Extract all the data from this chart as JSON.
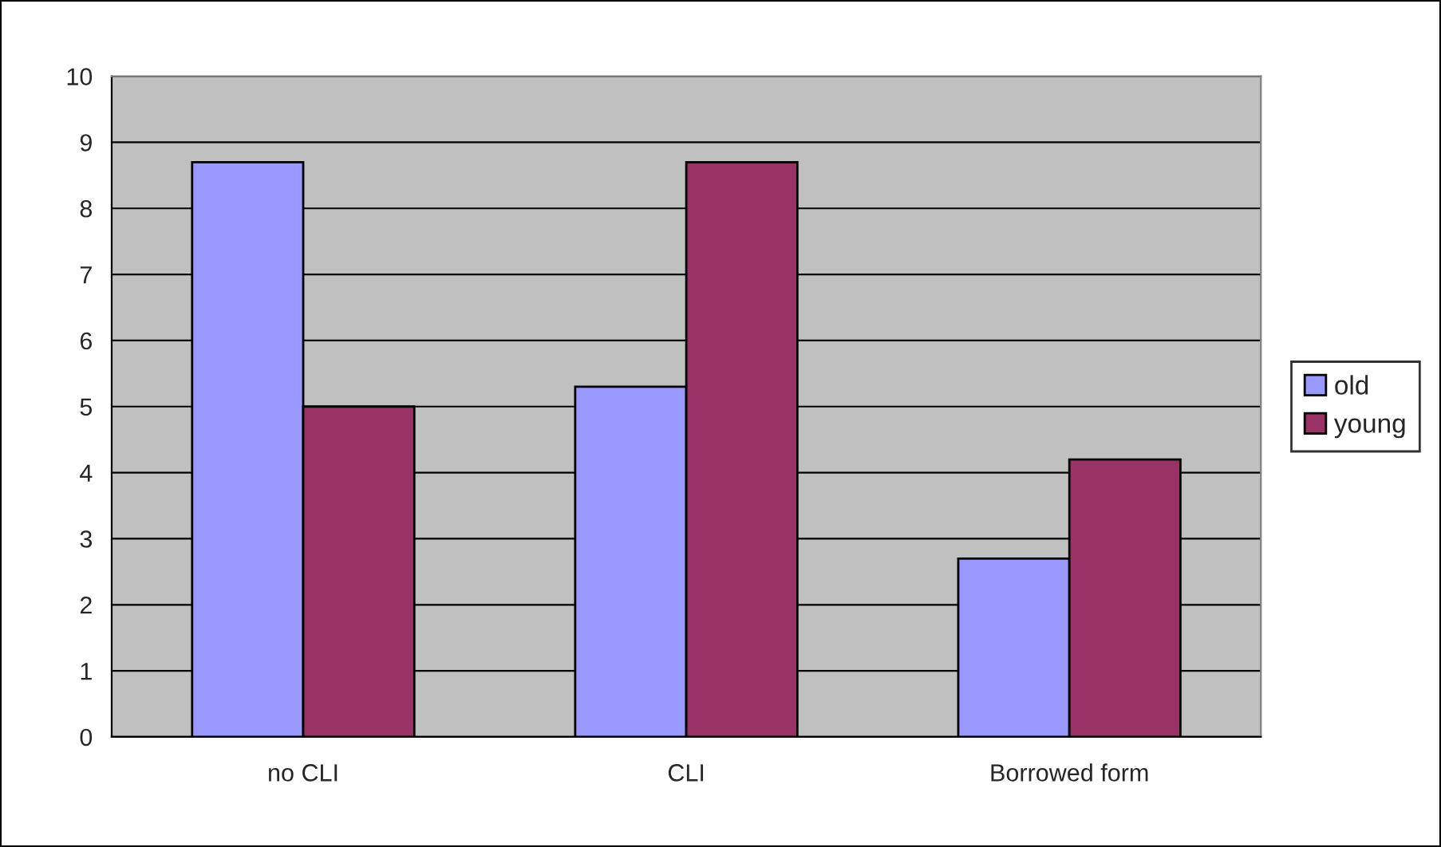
{
  "chart_data": {
    "type": "bar",
    "categories": [
      "no CLI",
      "CLI",
      "Borrowed form"
    ],
    "series": [
      {
        "name": "old",
        "color": "#9999ff",
        "values": [
          8.7,
          5.3,
          2.7
        ]
      },
      {
        "name": "young",
        "color": "#993366",
        "values": [
          5.0,
          8.7,
          4.2
        ]
      }
    ],
    "ylim": [
      0,
      10
    ],
    "yticks": [
      0,
      1,
      2,
      3,
      4,
      5,
      6,
      7,
      8,
      9,
      10
    ],
    "grid": "y",
    "legend": "right"
  }
}
